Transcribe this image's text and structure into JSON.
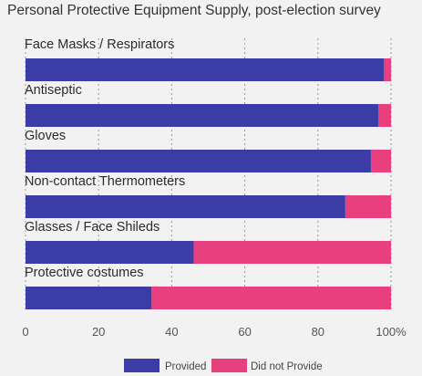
{
  "chart_data": {
    "type": "bar",
    "orientation": "horizontal",
    "stacked": true,
    "title": "Personal Protective Equipment Supply, post-election survey",
    "categories": [
      "Face Masks / Respirators",
      "Antiseptic",
      "Gloves",
      "Non-contact Thermometers",
      "Glasses / Face Shileds",
      "Protective costumes"
    ],
    "series": [
      {
        "name": "Provided",
        "color": "#3c3ca6",
        "values": [
          98,
          96.5,
          94.5,
          87.5,
          46,
          34.5
        ]
      },
      {
        "name": "Did not Provide",
        "color": "#e8407e",
        "values": [
          2,
          3.5,
          5.5,
          12.5,
          54,
          65.5
        ]
      }
    ],
    "x_axis": {
      "range": [
        0,
        100
      ],
      "ticks": [
        0,
        20,
        40,
        60,
        80,
        100
      ],
      "tick_labels": [
        "0",
        "20",
        "40",
        "60",
        "80",
        "100%"
      ]
    },
    "grid": "vertical-dashed",
    "legend_position": "bottom"
  }
}
